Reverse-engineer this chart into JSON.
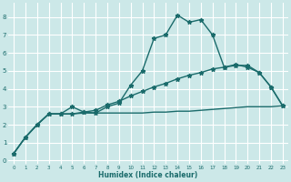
{
  "line1_x": [
    0,
    1,
    2,
    3,
    4,
    5,
    6,
    7,
    8,
    9,
    10,
    11,
    12,
    13,
    14,
    15,
    16,
    17,
    18,
    19,
    20,
    21,
    22,
    23
  ],
  "line1_y": [
    0.4,
    1.3,
    2.0,
    2.6,
    2.6,
    3.0,
    2.7,
    2.65,
    3.0,
    3.2,
    4.2,
    5.0,
    6.8,
    7.0,
    8.1,
    7.7,
    7.85,
    7.0,
    5.2,
    5.3,
    5.3,
    4.9,
    4.1,
    3.05
  ],
  "line2_x": [
    0,
    1,
    2,
    3,
    4,
    5,
    6,
    7,
    8,
    9,
    10,
    11,
    12,
    13,
    14,
    15,
    16,
    17,
    18,
    19,
    20,
    21,
    22,
    23
  ],
  "line2_y": [
    0.4,
    1.3,
    2.0,
    2.6,
    2.6,
    2.6,
    2.7,
    2.8,
    3.1,
    3.3,
    3.6,
    3.85,
    4.1,
    4.3,
    4.55,
    4.75,
    4.9,
    5.1,
    5.2,
    5.35,
    5.2,
    4.9,
    4.1,
    3.05
  ],
  "line3_x": [
    0,
    1,
    2,
    3,
    4,
    5,
    6,
    7,
    8,
    9,
    10,
    11,
    12,
    13,
    14,
    15,
    16,
    17,
    18,
    19,
    20,
    21,
    22,
    23
  ],
  "line3_y": [
    0.4,
    1.3,
    2.0,
    2.6,
    2.6,
    2.6,
    2.65,
    2.65,
    2.65,
    2.65,
    2.65,
    2.65,
    2.7,
    2.7,
    2.75,
    2.75,
    2.8,
    2.85,
    2.9,
    2.95,
    3.0,
    3.0,
    3.0,
    3.05
  ],
  "line_color": "#1a6b6b",
  "bg_color": "#cce8e8",
  "grid_color": "#ffffff",
  "xlabel": "Humidex (Indice chaleur)",
  "ylim": [
    -0.2,
    8.8
  ],
  "xlim": [
    -0.5,
    23.5
  ],
  "yticks": [
    0,
    1,
    2,
    3,
    4,
    5,
    6,
    7,
    8
  ],
  "xticks": [
    0,
    1,
    2,
    3,
    4,
    5,
    6,
    7,
    8,
    9,
    10,
    11,
    12,
    13,
    14,
    15,
    16,
    17,
    18,
    19,
    20,
    21,
    22,
    23
  ],
  "marker": "*",
  "marker_size": 3.5,
  "line_width": 1.0
}
